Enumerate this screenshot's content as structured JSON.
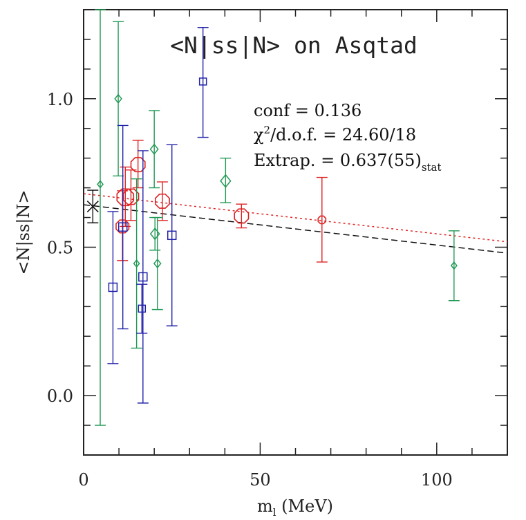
{
  "chart_data": {
    "type": "scatter",
    "title": "<N|ss|N> on Asqtad",
    "xlabel": "m",
    "xlabel_sub": "l",
    "xlabel_unit": " (MeV)",
    "ylabel": "<N|ss|N>",
    "xlim": [
      0,
      120
    ],
    "ylim": [
      -0.2,
      1.3
    ],
    "x_ticks": [
      0,
      50,
      100
    ],
    "y_ticks": [
      0.0,
      0.5,
      1.0
    ],
    "y_tick_labels": [
      "0.0",
      "0.5",
      "1.0"
    ],
    "grid": false,
    "annotations": {
      "conf": "conf = 0.136",
      "chi_chi": "χ",
      "chi_sup": "2",
      "chi_rest": "/d.o.f. = 24.60/18",
      "extrap_main": "Extrap. = 0.637(55)",
      "extrap_sub": "stat"
    },
    "colors": {
      "red": "#dd2222",
      "green": "#229955",
      "blue": "#2222aa",
      "black": "#111111"
    },
    "series": [
      {
        "color": "red",
        "marker": "octagon",
        "points": [
          {
            "x": 11.0,
            "y": 0.57,
            "lo": 0.455,
            "hi": 0.69,
            "size": 10
          },
          {
            "x": 11.8,
            "y": 0.668,
            "lo": 0.57,
            "hi": 0.77,
            "size": 13
          },
          {
            "x": 13.4,
            "y": 0.67,
            "lo": 0.59,
            "hi": 0.76,
            "size": 12
          },
          {
            "x": 15.4,
            "y": 0.778,
            "lo": 0.7,
            "hi": 0.86,
            "size": 11
          },
          {
            "x": 22.3,
            "y": 0.655,
            "lo": 0.59,
            "hi": 0.72,
            "size": 11
          },
          {
            "x": 44.7,
            "y": 0.605,
            "lo": 0.565,
            "hi": 0.645,
            "size": 11
          },
          {
            "x": 67.5,
            "y": 0.592,
            "lo": 0.45,
            "hi": 0.735,
            "size": 6
          }
        ]
      },
      {
        "color": "green",
        "marker": "diamond",
        "points": [
          {
            "x": 4.7,
            "y": 0.712,
            "lo": -0.1,
            "hi": 1.3,
            "size": 5
          },
          {
            "x": 9.8,
            "y": 1.0,
            "lo": 0.74,
            "hi": 1.26,
            "size": 6
          },
          {
            "x": 15.0,
            "y": 0.445,
            "lo": 0.16,
            "hi": 0.73,
            "size": 5
          },
          {
            "x": 20.0,
            "y": 0.83,
            "lo": 0.7,
            "hi": 0.96,
            "size": 7
          },
          {
            "x": 20.2,
            "y": 0.545,
            "lo": 0.49,
            "hi": 0.6,
            "size": 8
          },
          {
            "x": 20.9,
            "y": 0.445,
            "lo": 0.29,
            "hi": 0.6,
            "size": 6
          },
          {
            "x": 40.2,
            "y": 0.723,
            "lo": 0.65,
            "hi": 0.8,
            "size": 9
          },
          {
            "x": 104.9,
            "y": 0.438,
            "lo": 0.32,
            "hi": 0.555,
            "size": 5
          }
        ]
      },
      {
        "color": "blue",
        "marker": "square",
        "points": [
          {
            "x": 8.3,
            "y": 0.365,
            "lo": 0.108,
            "hi": 0.62,
            "size": 6
          },
          {
            "x": 11.1,
            "y": 0.568,
            "lo": 0.225,
            "hi": 0.91,
            "size": 6
          },
          {
            "x": 16.5,
            "y": 0.293,
            "lo": 0.21,
            "hi": 0.375,
            "size": 5
          },
          {
            "x": 16.8,
            "y": 0.4,
            "lo": -0.025,
            "hi": 0.825,
            "size": 6
          },
          {
            "x": 25.0,
            "y": 0.54,
            "lo": 0.235,
            "hi": 0.845,
            "size": 6
          },
          {
            "x": 33.8,
            "y": 1.058,
            "lo": 0.87,
            "hi": 1.24,
            "size": 5
          }
        ]
      }
    ],
    "extrapolated": {
      "x": 2.6,
      "y": 0.637,
      "lo": 0.582,
      "hi": 0.692,
      "color": "black",
      "marker": "cross"
    },
    "fits": [
      {
        "color": "red",
        "style": "dotted",
        "x": [
          0,
          120
        ],
        "y": [
          0.68,
          0.518
        ]
      },
      {
        "color": "black",
        "style": "dashed",
        "x": [
          0,
          120
        ],
        "y": [
          0.643,
          0.48
        ]
      }
    ]
  }
}
